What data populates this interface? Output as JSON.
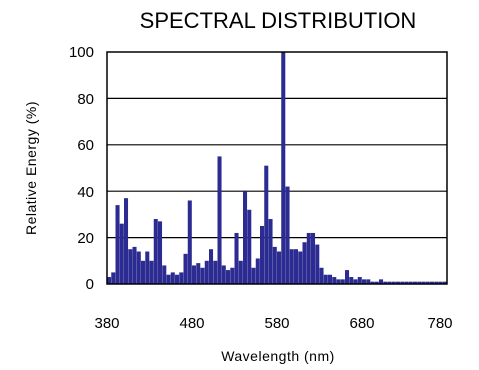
{
  "chart_data": {
    "type": "bar",
    "title": "SPECTRAL DISTRIBUTION",
    "xlabel": "Wavelength (nm)",
    "ylabel": "Relative Energy (%)",
    "xlim": [
      380,
      780
    ],
    "ylim": [
      0,
      100
    ],
    "x_ticks": [
      "380",
      "480",
      "580",
      "680",
      "780"
    ],
    "y_ticks": [
      "0",
      "20",
      "40",
      "60",
      "80",
      "100"
    ],
    "grid": "horizontal",
    "bar_color": "#2b2b91",
    "series": [
      {
        "x": [
          380,
          385,
          390,
          395,
          400,
          405,
          410,
          415,
          420,
          425,
          430,
          435,
          440,
          445,
          450,
          455,
          460,
          465,
          470,
          475,
          480,
          485,
          490,
          495,
          500,
          505,
          510,
          515,
          520,
          525,
          530,
          535,
          540,
          545,
          550,
          555,
          560,
          565,
          570,
          575,
          580,
          585,
          590,
          595,
          600,
          605,
          610,
          615,
          620,
          625,
          630,
          635,
          640,
          645,
          650,
          655,
          660,
          665,
          670,
          675,
          680,
          685,
          690,
          695,
          700,
          705,
          710,
          715,
          720,
          725,
          730,
          735,
          740,
          745,
          750,
          755,
          760,
          765,
          770,
          775
        ],
        "values": [
          3,
          5,
          34,
          26,
          37,
          15,
          16,
          14,
          10,
          14,
          10,
          28,
          27,
          8,
          4,
          5,
          4,
          5,
          13,
          36,
          8,
          9,
          7,
          10,
          15,
          10,
          55,
          8,
          6,
          7,
          22,
          10,
          40,
          32,
          7,
          11,
          25,
          51,
          28,
          16,
          14,
          100,
          42,
          15,
          15,
          14,
          18,
          22,
          22,
          17,
          7,
          4,
          4,
          3,
          2,
          2,
          6,
          3,
          2,
          3,
          2,
          2,
          1,
          1,
          2,
          1,
          1,
          1,
          1,
          1,
          1,
          1,
          1,
          1,
          1,
          1,
          1,
          1,
          1,
          1
        ]
      }
    ]
  }
}
